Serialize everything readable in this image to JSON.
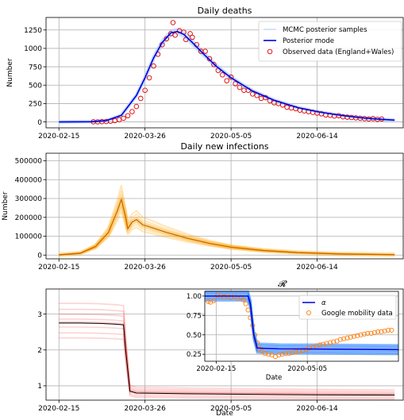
{
  "chart_data": [
    {
      "type": "line",
      "title": "Daily deaths",
      "xlabel": "",
      "ylabel": "Number",
      "x_ticks": [
        "2020-02-15",
        "2020-03-26",
        "2020-05-05",
        "2020-06-14"
      ],
      "y_ticks": [
        0,
        250,
        500,
        750,
        1000,
        1250
      ],
      "xlim": [
        "2020-02-09",
        "2020-07-24"
      ],
      "ylim": [
        -80,
        1420
      ],
      "grid": true,
      "legend_position": "top-right",
      "legend": [
        "MCMC posterior samples",
        "Posterior mode",
        "Observed data (England+Wales)"
      ],
      "series": [
        {
          "name": "Posterior mode",
          "color": "#0000dd",
          "points": [
            [
              "2020-02-15",
              0
            ],
            [
              "2020-03-01",
              3
            ],
            [
              "2020-03-08",
              18
            ],
            [
              "2020-03-15",
              90
            ],
            [
              "2020-03-22",
              360
            ],
            [
              "2020-03-26",
              600
            ],
            [
              "2020-03-30",
              870
            ],
            [
              "2020-04-03",
              1080
            ],
            [
              "2020-04-07",
              1210
            ],
            [
              "2020-04-10",
              1230
            ],
            [
              "2020-04-13",
              1190
            ],
            [
              "2020-04-17",
              1080
            ],
            [
              "2020-04-22",
              930
            ],
            [
              "2020-04-28",
              760
            ],
            [
              "2020-05-05",
              600
            ],
            [
              "2020-05-15",
              420
            ],
            [
              "2020-05-25",
              295
            ],
            [
              "2020-06-05",
              195
            ],
            [
              "2020-06-14",
              140
            ],
            [
              "2020-06-25",
              90
            ],
            [
              "2020-07-05",
              55
            ],
            [
              "2020-07-14",
              35
            ],
            [
              "2020-07-20",
              25
            ]
          ]
        },
        {
          "name": "Observed data (England+Wales)",
          "color": "#dd0000",
          "points": [
            [
              "2020-03-02",
              2
            ],
            [
              "2020-03-04",
              1
            ],
            [
              "2020-03-06",
              4
            ],
            [
              "2020-03-08",
              6
            ],
            [
              "2020-03-10",
              10
            ],
            [
              "2020-03-12",
              18
            ],
            [
              "2020-03-14",
              30
            ],
            [
              "2020-03-16",
              50
            ],
            [
              "2020-03-18",
              85
            ],
            [
              "2020-03-20",
              140
            ],
            [
              "2020-03-22",
              210
            ],
            [
              "2020-03-24",
              320
            ],
            [
              "2020-03-26",
              430
            ],
            [
              "2020-03-28",
              600
            ],
            [
              "2020-03-30",
              760
            ],
            [
              "2020-04-01",
              920
            ],
            [
              "2020-04-03",
              1050
            ],
            [
              "2020-04-05",
              1130
            ],
            [
              "2020-04-07",
              1200
            ],
            [
              "2020-04-08",
              1350
            ],
            [
              "2020-04-09",
              1180
            ],
            [
              "2020-04-11",
              1240
            ],
            [
              "2020-04-13",
              1220
            ],
            [
              "2020-04-14",
              1120
            ],
            [
              "2020-04-16",
              1200
            ],
            [
              "2020-04-17",
              1150
            ],
            [
              "2020-04-19",
              1050
            ],
            [
              "2020-04-21",
              960
            ],
            [
              "2020-04-23",
              960
            ],
            [
              "2020-04-25",
              860
            ],
            [
              "2020-04-27",
              780
            ],
            [
              "2020-04-29",
              700
            ],
            [
              "2020-05-01",
              640
            ],
            [
              "2020-05-03",
              560
            ],
            [
              "2020-05-05",
              610
            ],
            [
              "2020-05-07",
              520
            ],
            [
              "2020-05-09",
              470
            ],
            [
              "2020-05-11",
              430
            ],
            [
              "2020-05-13",
              430
            ],
            [
              "2020-05-15",
              380
            ],
            [
              "2020-05-17",
              360
            ],
            [
              "2020-05-19",
              320
            ],
            [
              "2020-05-21",
              330
            ],
            [
              "2020-05-23",
              290
            ],
            [
              "2020-05-25",
              260
            ],
            [
              "2020-05-27",
              250
            ],
            [
              "2020-05-29",
              230
            ],
            [
              "2020-05-31",
              200
            ],
            [
              "2020-06-02",
              190
            ],
            [
              "2020-06-04",
              180
            ],
            [
              "2020-06-06",
              160
            ],
            [
              "2020-06-08",
              150
            ],
            [
              "2020-06-10",
              140
            ],
            [
              "2020-06-12",
              130
            ],
            [
              "2020-06-14",
              120
            ],
            [
              "2020-06-16",
              110
            ],
            [
              "2020-06-18",
              95
            ],
            [
              "2020-06-20",
              90
            ],
            [
              "2020-06-22",
              80
            ],
            [
              "2020-06-24",
              85
            ],
            [
              "2020-06-26",
              70
            ],
            [
              "2020-06-28",
              65
            ],
            [
              "2020-06-30",
              60
            ],
            [
              "2020-07-02",
              55
            ],
            [
              "2020-07-04",
              50
            ],
            [
              "2020-07-06",
              45
            ],
            [
              "2020-07-08",
              40
            ],
            [
              "2020-07-10",
              45
            ],
            [
              "2020-07-12",
              35
            ],
            [
              "2020-07-14",
              40
            ]
          ]
        }
      ],
      "band_color": "#9fc0ff"
    },
    {
      "type": "line",
      "title": "Daily new infections",
      "xlabel": "",
      "ylabel": "Number",
      "x_ticks": [
        "2020-02-15",
        "2020-03-26",
        "2020-05-05",
        "2020-06-14"
      ],
      "y_ticks": [
        0,
        100000,
        200000,
        300000,
        400000,
        500000
      ],
      "xlim": [
        "2020-02-09",
        "2020-07-24"
      ],
      "ylim": [
        -20000,
        540000
      ],
      "grid": true,
      "series": [
        {
          "name": "",
          "color": "#d06a00",
          "points": [
            [
              "2020-02-15",
              1000
            ],
            [
              "2020-02-25",
              10000
            ],
            [
              "2020-03-03",
              45000
            ],
            [
              "2020-03-09",
              120000
            ],
            [
              "2020-03-13",
              230000
            ],
            [
              "2020-03-15",
              295000
            ],
            [
              "2020-03-17",
              200000
            ],
            [
              "2020-03-18",
              140000
            ],
            [
              "2020-03-20",
              175000
            ],
            [
              "2020-03-22",
              188000
            ],
            [
              "2020-03-25",
              160000
            ],
            [
              "2020-03-28",
              150000
            ],
            [
              "2020-04-05",
              120000
            ],
            [
              "2020-04-15",
              88000
            ],
            [
              "2020-04-25",
              62000
            ],
            [
              "2020-05-05",
              42000
            ],
            [
              "2020-05-20",
              24000
            ],
            [
              "2020-06-05",
              13000
            ],
            [
              "2020-06-25",
              6000
            ],
            [
              "2020-07-20",
              2000
            ]
          ]
        }
      ],
      "band_color": "#ffa500"
    },
    {
      "type": "line",
      "title": "",
      "xlabel": "Date",
      "ylabel": "",
      "x_ticks": [
        "2020-02-15",
        "2020-03-26",
        "2020-05-05",
        "2020-06-14"
      ],
      "y_ticks": [
        1,
        2,
        3
      ],
      "xlim": [
        "2020-02-09",
        "2020-07-24"
      ],
      "ylim": [
        0.6,
        3.7
      ],
      "grid": true,
      "series": [
        {
          "name": "",
          "color": "#000000",
          "points": [
            [
              "2020-02-15",
              2.75
            ],
            [
              "2020-02-25",
              2.75
            ],
            [
              "2020-03-05",
              2.74
            ],
            [
              "2020-03-12",
              2.72
            ],
            [
              "2020-03-16",
              2.7
            ],
            [
              "2020-03-17",
              2.0
            ],
            [
              "2020-03-19",
              0.85
            ],
            [
              "2020-03-22",
              0.8
            ],
            [
              "2020-04-15",
              0.78
            ],
            [
              "2020-05-05",
              0.77
            ],
            [
              "2020-06-14",
              0.75
            ],
            [
              "2020-07-20",
              0.74
            ]
          ]
        }
      ],
      "band_color": "#ff3030",
      "inset": {
        "title": "𝓡",
        "xlabel": "Date",
        "x_ticks": [
          "2020-02-15",
          "2020-05-05"
        ],
        "y_ticks": [
          "1.00",
          "0.75",
          "0.50",
          "0.25"
        ],
        "xlim": [
          "2020-02-05",
          "2020-07-24"
        ],
        "ylim": [
          0.16,
          1.06
        ],
        "legend": [
          "α",
          "Google mobility data"
        ],
        "legend_position": "right",
        "series": [
          {
            "name": "α",
            "color": "#0000dd",
            "points": [
              [
                "2020-02-05",
                1.0
              ],
              [
                "2020-03-14",
                1.0
              ],
              [
                "2020-03-16",
                0.9
              ],
              [
                "2020-03-19",
                0.5
              ],
              [
                "2020-03-22",
                0.33
              ],
              [
                "2020-04-10",
                0.32
              ],
              [
                "2020-07-24",
                0.31
              ]
            ]
          },
          {
            "name": "Google mobility data",
            "color": "#ff7f0e",
            "points": [
              [
                "2020-02-08",
                0.93
              ],
              [
                "2020-02-10",
                0.92
              ],
              [
                "2020-02-13",
                0.94
              ],
              [
                "2020-02-16",
                1.01
              ],
              [
                "2020-02-19",
                1.0
              ],
              [
                "2020-02-22",
                0.99
              ],
              [
                "2020-02-25",
                1.0
              ],
              [
                "2020-02-28",
                0.98
              ],
              [
                "2020-03-02",
                1.0
              ],
              [
                "2020-03-05",
                0.97
              ],
              [
                "2020-03-08",
                0.98
              ],
              [
                "2020-03-10",
                0.95
              ],
              [
                "2020-03-12",
                0.9
              ],
              [
                "2020-03-14",
                0.82
              ],
              [
                "2020-03-16",
                0.72
              ],
              [
                "2020-03-18",
                0.62
              ],
              [
                "2020-03-20",
                0.5
              ],
              [
                "2020-03-22",
                0.4
              ],
              [
                "2020-03-24",
                0.32
              ],
              [
                "2020-03-26",
                0.29
              ],
              [
                "2020-03-29",
                0.26
              ],
              [
                "2020-04-01",
                0.25
              ],
              [
                "2020-04-04",
                0.24
              ],
              [
                "2020-04-07",
                0.22
              ],
              [
                "2020-04-10",
                0.24
              ],
              [
                "2020-04-13",
                0.25
              ],
              [
                "2020-04-16",
                0.26
              ],
              [
                "2020-04-19",
                0.26
              ],
              [
                "2020-04-22",
                0.27
              ],
              [
                "2020-04-25",
                0.28
              ],
              [
                "2020-04-28",
                0.29
              ],
              [
                "2020-05-01",
                0.3
              ],
              [
                "2020-05-04",
                0.31
              ],
              [
                "2020-05-07",
                0.33
              ],
              [
                "2020-05-10",
                0.34
              ],
              [
                "2020-05-13",
                0.36
              ],
              [
                "2020-05-16",
                0.37
              ],
              [
                "2020-05-19",
                0.38
              ],
              [
                "2020-05-22",
                0.39
              ],
              [
                "2020-05-25",
                0.4
              ],
              [
                "2020-05-28",
                0.41
              ],
              [
                "2020-05-31",
                0.42
              ],
              [
                "2020-06-03",
                0.44
              ],
              [
                "2020-06-06",
                0.45
              ],
              [
                "2020-06-09",
                0.46
              ],
              [
                "2020-06-12",
                0.47
              ],
              [
                "2020-06-15",
                0.48
              ],
              [
                "2020-06-18",
                0.49
              ],
              [
                "2020-06-21",
                0.5
              ],
              [
                "2020-06-24",
                0.51
              ],
              [
                "2020-06-27",
                0.52
              ],
              [
                "2020-06-30",
                0.52
              ],
              [
                "2020-07-03",
                0.53
              ],
              [
                "2020-07-06",
                0.54
              ],
              [
                "2020-07-09",
                0.54
              ],
              [
                "2020-07-12",
                0.55
              ],
              [
                "2020-07-15",
                0.56
              ],
              [
                "2020-07-18",
                0.56
              ]
            ]
          }
        ],
        "band_color": "#3388ff"
      }
    }
  ]
}
